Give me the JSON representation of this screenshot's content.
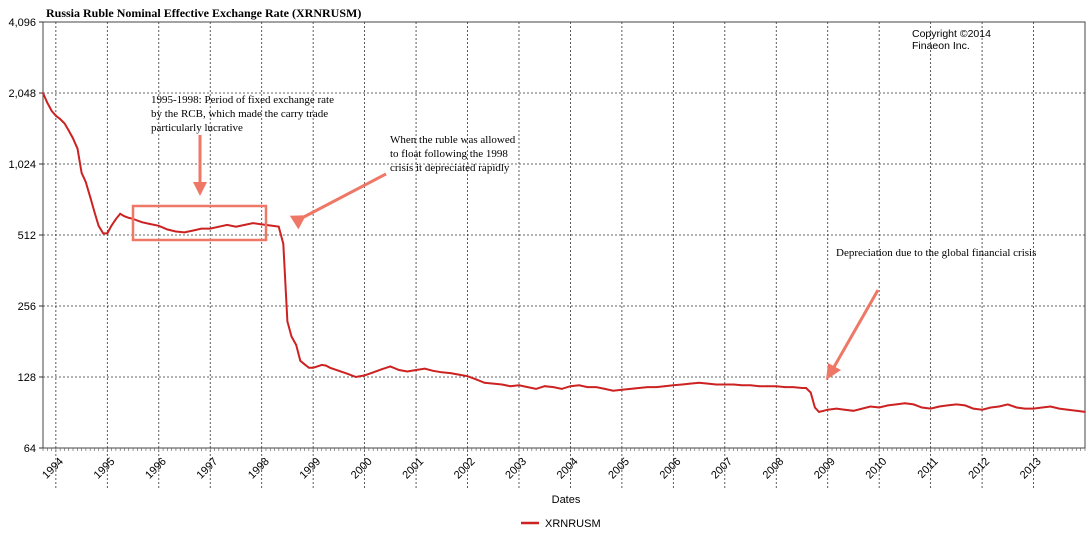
{
  "chart_data": {
    "type": "line",
    "title": "Russia Ruble Nominal Effective Exchange Rate (XRNRUSM)",
    "xlabel": "Dates",
    "ylabel": "",
    "y_scale": "log2",
    "ylim": [
      64,
      4096
    ],
    "xlim": [
      1993.75,
      2014.0
    ],
    "y_ticks": [
      {
        "value": 64,
        "label": "64"
      },
      {
        "value": 128,
        "label": "128"
      },
      {
        "value": 256,
        "label": "256"
      },
      {
        "value": 512,
        "label": "512"
      },
      {
        "value": 1024,
        "label": "1,024"
      },
      {
        "value": 2048,
        "label": "2,048"
      },
      {
        "value": 4096,
        "label": "4,096"
      }
    ],
    "x_ticks": [
      {
        "value": 1994,
        "label": "1994"
      },
      {
        "value": 1995,
        "label": "1995"
      },
      {
        "value": 1996,
        "label": "1996"
      },
      {
        "value": 1997,
        "label": "1997"
      },
      {
        "value": 1998,
        "label": "1998"
      },
      {
        "value": 1999,
        "label": "1999"
      },
      {
        "value": 2000,
        "label": "2000"
      },
      {
        "value": 2001,
        "label": "2001"
      },
      {
        "value": 2002,
        "label": "2002"
      },
      {
        "value": 2003,
        "label": "2003"
      },
      {
        "value": 2004,
        "label": "2004"
      },
      {
        "value": 2005,
        "label": "2005"
      },
      {
        "value": 2006,
        "label": "2006"
      },
      {
        "value": 2007,
        "label": "2007"
      },
      {
        "value": 2008,
        "label": "2008"
      },
      {
        "value": 2009,
        "label": "2009"
      },
      {
        "value": 2010,
        "label": "2010"
      },
      {
        "value": 2011,
        "label": "2011"
      },
      {
        "value": 2012,
        "label": "2012"
      },
      {
        "value": 2013,
        "label": "2013"
      }
    ],
    "grid": true,
    "legend_position": "bottom-center",
    "series": [
      {
        "name": "XRNRUSM",
        "color": "#cc2222",
        "x": [
          1993.75,
          1993.83,
          1993.92,
          1994.0,
          1994.08,
          1994.17,
          1994.25,
          1994.33,
          1994.42,
          1994.5,
          1994.58,
          1994.67,
          1994.75,
          1994.83,
          1994.92,
          1995.0,
          1995.08,
          1995.17,
          1995.25,
          1995.33,
          1995.42,
          1995.5,
          1995.58,
          1995.67,
          1995.83,
          1996.0,
          1996.17,
          1996.33,
          1996.5,
          1996.67,
          1996.83,
          1997.0,
          1997.17,
          1997.33,
          1997.5,
          1997.67,
          1997.83,
          1998.0,
          1998.17,
          1998.33,
          1998.42,
          1998.5,
          1998.58,
          1998.67,
          1998.75,
          1998.83,
          1998.92,
          1999.0,
          1999.08,
          1999.17,
          1999.25,
          1999.33,
          1999.5,
          1999.67,
          1999.83,
          2000.0,
          2000.17,
          2000.33,
          2000.5,
          2000.67,
          2000.83,
          2001.0,
          2001.17,
          2001.33,
          2001.5,
          2001.67,
          2001.83,
          2002.0,
          2002.17,
          2002.33,
          2002.5,
          2002.67,
          2002.83,
          2003.0,
          2003.17,
          2003.33,
          2003.5,
          2003.67,
          2003.83,
          2004.0,
          2004.17,
          2004.33,
          2004.5,
          2004.67,
          2004.83,
          2005.0,
          2005.17,
          2005.33,
          2005.5,
          2005.67,
          2005.83,
          2006.0,
          2006.17,
          2006.33,
          2006.5,
          2006.67,
          2006.83,
          2007.0,
          2007.17,
          2007.33,
          2007.5,
          2007.67,
          2007.83,
          2008.0,
          2008.17,
          2008.33,
          2008.5,
          2008.58,
          2008.67,
          2008.75,
          2008.83,
          2008.92,
          2009.0,
          2009.17,
          2009.33,
          2009.5,
          2009.67,
          2009.83,
          2010.0,
          2010.17,
          2010.33,
          2010.5,
          2010.67,
          2010.83,
          2011.0,
          2011.17,
          2011.33,
          2011.5,
          2011.67,
          2011.83,
          2012.0,
          2012.17,
          2012.33,
          2012.5,
          2012.67,
          2012.83,
          2013.0,
          2013.17,
          2013.33,
          2013.5,
          2013.67,
          2013.83,
          2014.0
        ],
        "values": [
          2048,
          1870,
          1720,
          1640,
          1590,
          1520,
          1420,
          1320,
          1190,
          940,
          860,
          740,
          640,
          560,
          520,
          520,
          560,
          600,
          630,
          615,
          605,
          600,
          590,
          580,
          570,
          560,
          540,
          530,
          525,
          535,
          545,
          545,
          555,
          565,
          555,
          565,
          575,
          568,
          562,
          556,
          470,
          220,
          190,
          175,
          150,
          145,
          140,
          140,
          142,
          144,
          143,
          140,
          136,
          132,
          128,
          130,
          134,
          138,
          142,
          137,
          135,
          137,
          139,
          136,
          134,
          133,
          131,
          129,
          125,
          121,
          120,
          119,
          117,
          118,
          116,
          114,
          117,
          116,
          114,
          117,
          118,
          116,
          116,
          114,
          112,
          113,
          114,
          115,
          116,
          116,
          117,
          118,
          119,
          120,
          121,
          120,
          119,
          119,
          119,
          118,
          118,
          117,
          117,
          117,
          116,
          116,
          115,
          115,
          110,
          95,
          91,
          92,
          93,
          94,
          93,
          92,
          94,
          96,
          95,
          97,
          98,
          99,
          98,
          95,
          94,
          96,
          97,
          98,
          97,
          94,
          93,
          95,
          96,
          98,
          95,
          94,
          94,
          95,
          96,
          94,
          93,
          92,
          91
        ]
      }
    ],
    "annotations": [
      {
        "lines": [
          "1995-1998: Period of fixed exchange rate",
          "by the RCB, which made the carry trade",
          "particularly lucrative"
        ]
      },
      {
        "lines": [
          "When the ruble was allowed",
          "to float following the 1998",
          "crisis it depreciated rapidly"
        ]
      },
      {
        "lines": [
          "Depreciation due to the global financial crisis"
        ]
      }
    ],
    "copyright": [
      "Copyright ©2014",
      "Finaeon Inc."
    ]
  }
}
